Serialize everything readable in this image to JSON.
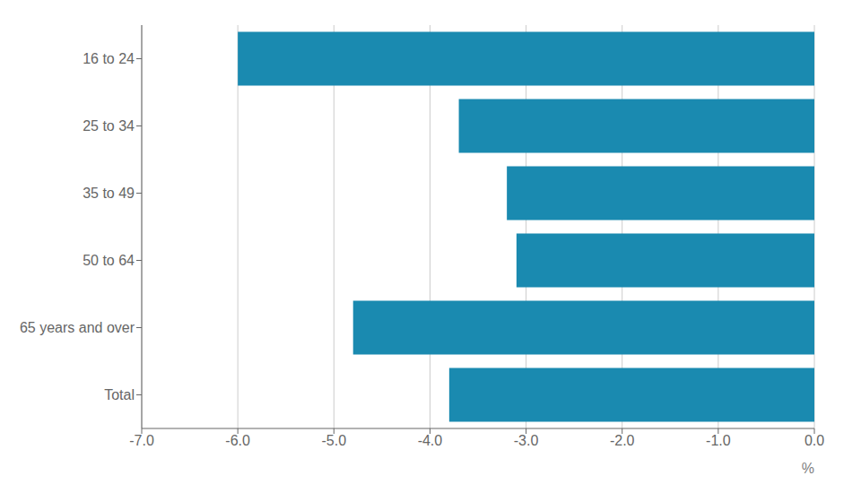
{
  "chart_data": {
    "type": "bar",
    "orientation": "horizontal",
    "categories": [
      "16 to 24",
      "25 to 34",
      "35 to 49",
      "50 to 64",
      "65 years and over",
      "Total"
    ],
    "values": [
      -6.0,
      -3.7,
      -3.2,
      -3.1,
      -4.8,
      -3.8
    ],
    "color": "#1a8ab0",
    "xlabel": "%",
    "xlim": [
      -7.0,
      0.0
    ],
    "xticks": [
      {
        "value": -7.0,
        "label": "-7.0"
      },
      {
        "value": -6.0,
        "label": "-6.0"
      },
      {
        "value": -5.0,
        "label": "-5.0"
      },
      {
        "value": -4.0,
        "label": "-4.0"
      },
      {
        "value": -3.0,
        "label": "-3.0"
      },
      {
        "value": -2.0,
        "label": "-2.0"
      },
      {
        "value": -1.0,
        "label": "-1.0"
      },
      {
        "value": 0.0,
        "label": "0.0"
      }
    ],
    "grid": "x"
  }
}
